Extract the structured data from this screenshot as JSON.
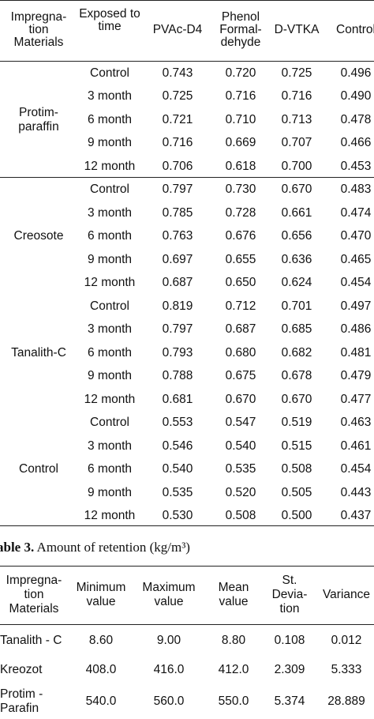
{
  "table2": {
    "headers": {
      "impregnation": "Impregna-\ntion\nMaterials",
      "exposed": "Exposed to\ntime",
      "pvac": "PVAc-D4",
      "phenol": "Phenol\nFormal-\ndehyde",
      "dvtka": "D-VTKA",
      "control": "Control"
    },
    "groups": [
      {
        "name": "Protim-\nparaffin",
        "rows": [
          [
            "Control",
            "0.743",
            "0.720",
            "0.725",
            "0.496"
          ],
          [
            "3 month",
            "0.725",
            "0.716",
            "0.716",
            "0.490"
          ],
          [
            "6 month",
            "0.721",
            "0.710",
            "0.713",
            "0.478"
          ],
          [
            "9 month",
            "0.716",
            "0.669",
            "0.707",
            "0.466"
          ],
          [
            "12 month",
            "0.706",
            "0.618",
            "0.700",
            "0.453"
          ]
        ]
      },
      {
        "name": "Creosote",
        "rows": [
          [
            "Control",
            "0.797",
            "0.730",
            "0.670",
            "0.483"
          ],
          [
            "3 month",
            "0.785",
            "0.728",
            "0.661",
            "0.474"
          ],
          [
            "6 month",
            "0.763",
            "0.676",
            "0.656",
            "0.470"
          ],
          [
            "9 month",
            "0.697",
            "0.655",
            "0.636",
            "0.465"
          ],
          [
            "12 month",
            "0.687",
            "0.650",
            "0.624",
            "0.454"
          ]
        ]
      },
      {
        "name": "Tanalith-C",
        "rows": [
          [
            "Control",
            "0.819",
            "0.712",
            "0.701",
            "0.497"
          ],
          [
            "3 month",
            "0.797",
            "0.687",
            "0.685",
            "0.486"
          ],
          [
            "6 month",
            "0.793",
            "0.680",
            "0.682",
            "0.481"
          ],
          [
            "9 month",
            "0.788",
            "0.675",
            "0.678",
            "0.479"
          ],
          [
            "12 month",
            "0.681",
            "0.670",
            "0.670",
            "0.477"
          ]
        ]
      },
      {
        "name": "Control",
        "rows": [
          [
            "Control",
            "0.553",
            "0.547",
            "0.519",
            "0.463"
          ],
          [
            "3 month",
            "0.546",
            "0.540",
            "0.515",
            "0.461"
          ],
          [
            "6 month",
            "0.540",
            "0.535",
            "0.508",
            "0.454"
          ],
          [
            "9 month",
            "0.535",
            "0.520",
            "0.505",
            "0.443"
          ],
          [
            "12 month",
            "0.530",
            "0.508",
            "0.500",
            "0.437"
          ]
        ]
      }
    ]
  },
  "table3": {
    "caption_label": "able 3.",
    "caption_text": " Amount of retention (kg/m³)",
    "headers": {
      "impregnation": "Impregna-\ntion\nMaterials",
      "min": "Minimum\nvalue",
      "max": "Maximum\nvalue",
      "mean": "Mean\nvalue",
      "sd": "St.\nDevia-\ntion",
      "variance": "Variance"
    },
    "rows": [
      [
        "Tanalith - C",
        "8.60",
        "9.00",
        "8.80",
        "0.108",
        "0.012"
      ],
      [
        "Kreozot",
        "408.0",
        "416.0",
        "412.0",
        "2.309",
        "5.333"
      ],
      [
        "Protim -\nParafin",
        "540.0",
        "560.0",
        "550.0",
        "5.374",
        "28.889"
      ]
    ]
  }
}
